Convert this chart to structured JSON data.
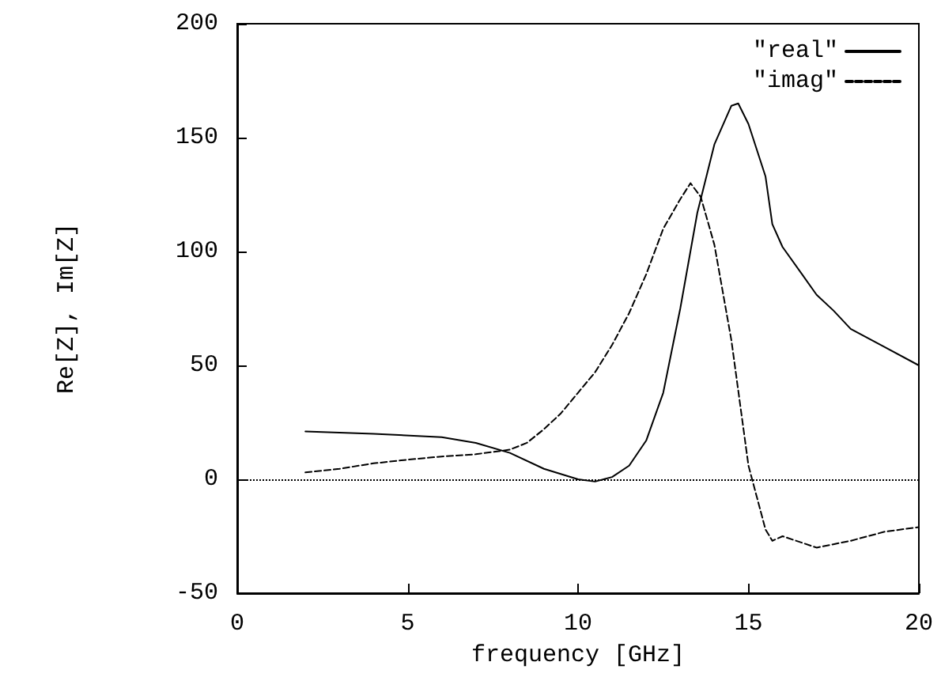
{
  "chart_data": {
    "type": "line",
    "xlabel": "frequency [GHz]",
    "ylabel": "Re[Z], Im[Z]",
    "xlim": [
      0,
      20
    ],
    "xticks": [
      0,
      5,
      10,
      15,
      20
    ],
    "ylim": [
      -50,
      200
    ],
    "yticks": [
      -50,
      0,
      50,
      100,
      150,
      200
    ],
    "grid": false,
    "legend": "top right",
    "marker": "none",
    "ref_lines": [
      {
        "axis": "y",
        "value": 0,
        "line_style": "dotted",
        "color": "#000000"
      }
    ],
    "series": [
      {
        "name": "\"real\"",
        "color": "#000000",
        "line_style": "solid",
        "x": [
          2,
          4,
          6,
          7,
          8,
          9,
          10,
          10.5,
          11,
          11.5,
          12,
          12.5,
          13,
          13.5,
          14,
          14.5,
          14.7,
          15,
          15.5,
          15.7,
          16,
          17,
          17.5,
          18,
          19,
          20
        ],
        "values": [
          21,
          20,
          18.5,
          16,
          11.6,
          4.6,
          0,
          -1,
          1,
          6,
          17,
          38,
          75,
          117,
          147,
          164,
          165,
          156,
          133,
          112,
          102,
          81,
          74,
          66,
          58,
          50
        ]
      },
      {
        "name": "\"imag\"",
        "color": "#000000",
        "line_style": "dashed",
        "x": [
          2,
          3,
          4,
          5,
          6,
          7,
          8,
          8.5,
          9,
          9.5,
          10,
          10.5,
          11,
          11.5,
          12,
          12.5,
          13,
          13.3,
          13.6,
          14,
          14.5,
          15,
          15.5,
          15.7,
          16,
          17,
          18,
          19,
          20
        ],
        "values": [
          3,
          4.6,
          7,
          8.6,
          10,
          11,
          13,
          16,
          22,
          29,
          38,
          47,
          59,
          73,
          90,
          110,
          123,
          130,
          124,
          103,
          61,
          6,
          -22,
          -27,
          -25,
          -30,
          -27,
          -23,
          -21
        ]
      }
    ]
  }
}
